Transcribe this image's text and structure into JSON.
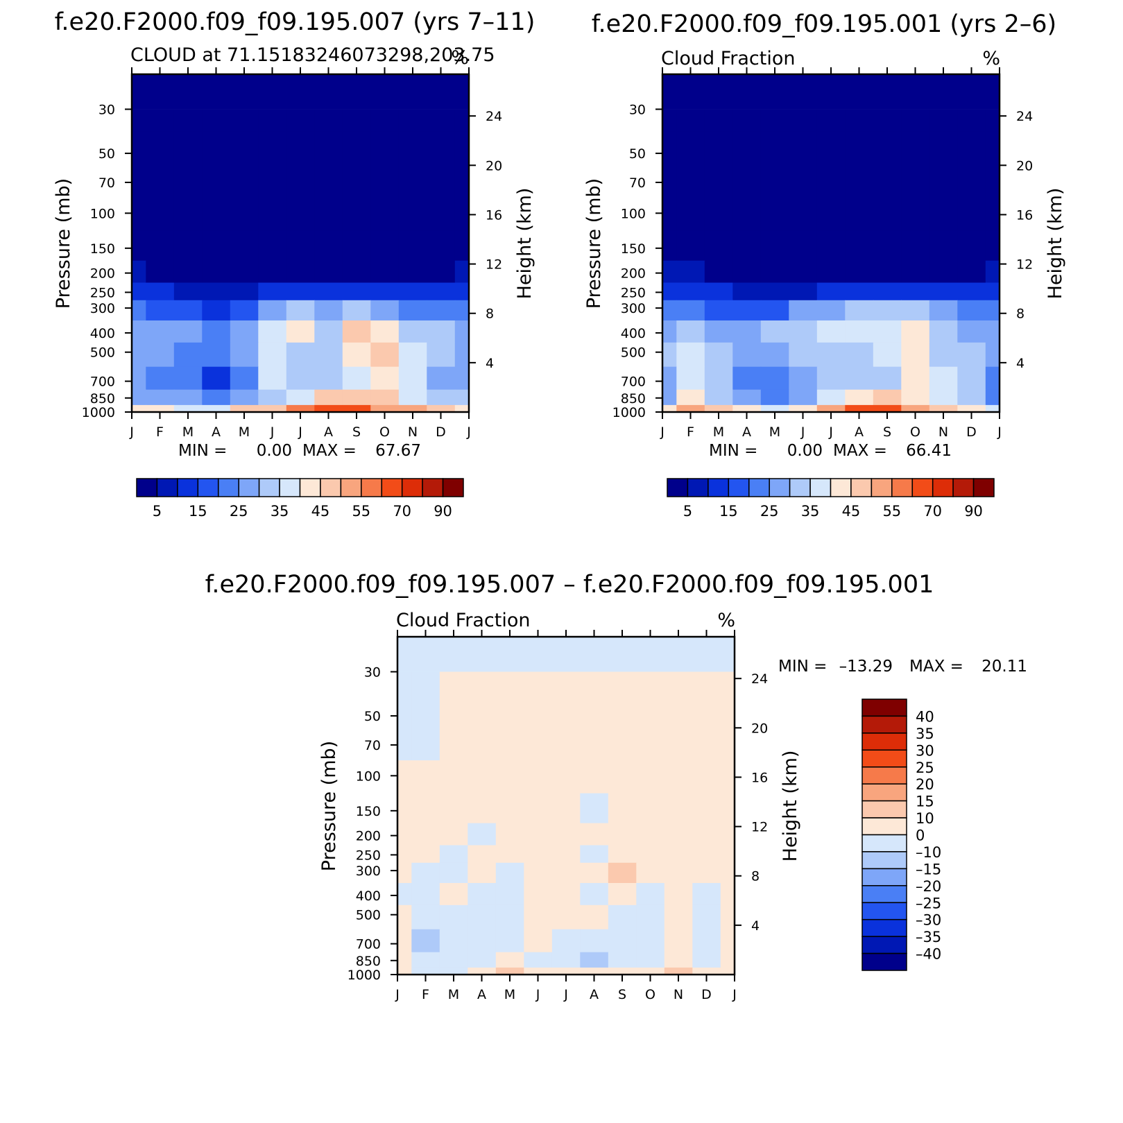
{
  "chart_data": [
    {
      "type": "heatmap",
      "case_title": "f.e20.F2000.f09_f09.195.007 (yrs 7–11)",
      "left_title": "CLOUD at 71.15183246073298,203.75",
      "right_title": "%",
      "ylabel": "Pressure (mb)",
      "y2label": "Height (km)",
      "x_ticks": [
        "J",
        "F",
        "M",
        "A",
        "M",
        "J",
        "J",
        "A",
        "S",
        "O",
        "N",
        "D",
        "J"
      ],
      "y_ticks": [
        30,
        50,
        70,
        100,
        150,
        200,
        250,
        300,
        400,
        500,
        700,
        850,
        1000
      ],
      "y2_ticks": [
        24,
        20,
        16,
        12,
        8,
        4
      ],
      "y_scale": "log",
      "ylim": [
        20,
        1000
      ],
      "min_label": "MIN =",
      "min_value": "0.00",
      "max_label": "MAX =",
      "max_value": "67.67",
      "colorbar": {
        "orientation": "horizontal",
        "labels": [
          "5",
          "15",
          "25",
          "35",
          "45",
          "55",
          "70",
          "90"
        ],
        "colors": [
          "#00008b",
          "#0018b4",
          "#0a32dc",
          "#2355f0",
          "#4a7ff5",
          "#7ea6f8",
          "#aecaf9",
          "#d6e7fb",
          "#fde8d7",
          "#fbc9ae",
          "#f8a57e",
          "#f67a4a",
          "#f24c18",
          "#dd2d08",
          "#b41a08",
          "#7f0000"
        ]
      },
      "field": [
        [
          0,
          0,
          0,
          0,
          0,
          0,
          0,
          0,
          0,
          0,
          0,
          0,
          0
        ],
        [
          0,
          0,
          0,
          0,
          0,
          0,
          0,
          0,
          0,
          0,
          0,
          0,
          0
        ],
        [
          0,
          0,
          0,
          0,
          0,
          0,
          0,
          0,
          0,
          0,
          0,
          0,
          0
        ],
        [
          0,
          0,
          0,
          0,
          0,
          0,
          0,
          0,
          0,
          0,
          0,
          0,
          0
        ],
        [
          1,
          1,
          1,
          1,
          1,
          1,
          1,
          1,
          1,
          1,
          1,
          1,
          1
        ],
        [
          6,
          4,
          3,
          2,
          2,
          3,
          4,
          4,
          4,
          4,
          4,
          4,
          6
        ],
        [
          12,
          11,
          9,
          6,
          7,
          10,
          11,
          12,
          12,
          11,
          11,
          11,
          12
        ],
        [
          20,
          19,
          17,
          14,
          19,
          27,
          30,
          28,
          33,
          27,
          23,
          21,
          22
        ],
        [
          25,
          27,
          25,
          22,
          29,
          38,
          42,
          31,
          45,
          43,
          34,
          30,
          27
        ],
        [
          28,
          28,
          24,
          20,
          27,
          35,
          32,
          30,
          44,
          46,
          38,
          31,
          28
        ],
        [
          25,
          24,
          22,
          14,
          20,
          35,
          32,
          33,
          36,
          40,
          36,
          28,
          26
        ],
        [
          28,
          26,
          27,
          23,
          28,
          33,
          38,
          45,
          47,
          45,
          38,
          33,
          30
        ],
        [
          40,
          40,
          38,
          37,
          45,
          47,
          55,
          60,
          62,
          54,
          50,
          46,
          40
        ]
      ]
    },
    {
      "type": "heatmap",
      "case_title": "f.e20.F2000.f09_f09.195.001 (yrs 2–6)",
      "left_title": "Cloud Fraction",
      "right_title": "%",
      "ylabel": "Pressure (mb)",
      "y2label": "Height (km)",
      "x_ticks": [
        "J",
        "F",
        "M",
        "A",
        "M",
        "J",
        "J",
        "A",
        "S",
        "O",
        "N",
        "D",
        "J"
      ],
      "y_ticks": [
        30,
        50,
        70,
        100,
        150,
        200,
        250,
        300,
        400,
        500,
        700,
        850,
        1000
      ],
      "y2_ticks": [
        24,
        20,
        16,
        12,
        8,
        4
      ],
      "y_scale": "log",
      "ylim": [
        20,
        1000
      ],
      "min_label": "MIN =",
      "min_value": "0.00",
      "max_label": "MAX =",
      "max_value": "66.41",
      "colorbar": {
        "orientation": "horizontal",
        "labels": [
          "5",
          "15",
          "25",
          "35",
          "45",
          "55",
          "70",
          "90"
        ],
        "colors": [
          "#00008b",
          "#0018b4",
          "#0a32dc",
          "#2355f0",
          "#4a7ff5",
          "#7ea6f8",
          "#aecaf9",
          "#d6e7fb",
          "#fde8d7",
          "#fbc9ae",
          "#f8a57e",
          "#f67a4a",
          "#f24c18",
          "#dd2d08",
          "#b41a08",
          "#7f0000"
        ]
      },
      "field": [
        [
          0,
          0,
          0,
          0,
          0,
          0,
          0,
          0,
          0,
          0,
          0,
          0,
          0
        ],
        [
          0,
          0,
          0,
          0,
          0,
          0,
          0,
          0,
          0,
          0,
          0,
          0,
          0
        ],
        [
          0,
          0,
          0,
          0,
          0,
          0,
          0,
          0,
          0,
          0,
          0,
          0,
          0
        ],
        [
          0,
          0,
          0,
          0,
          0,
          0,
          0,
          0,
          0,
          0,
          0,
          0,
          0
        ],
        [
          1,
          1,
          1,
          1,
          1,
          1,
          1,
          1,
          1,
          1,
          1,
          1,
          1
        ],
        [
          6,
          5,
          3,
          2,
          2,
          3,
          4,
          4,
          4,
          4,
          4,
          4,
          6
        ],
        [
          12,
          12,
          10,
          8,
          7,
          9,
          11,
          11,
          12,
          12,
          12,
          11,
          12
        ],
        [
          20,
          21,
          18,
          16,
          18,
          26,
          29,
          30,
          32,
          30,
          25,
          22,
          20
        ],
        [
          28,
          30,
          29,
          28,
          30,
          34,
          36,
          37,
          38,
          40,
          33,
          29,
          27
        ],
        [
          30,
          35,
          30,
          27,
          26,
          30,
          33,
          33,
          37,
          42,
          34,
          30,
          26
        ],
        [
          28,
          38,
          30,
          24,
          20,
          28,
          33,
          33,
          34,
          40,
          35,
          30,
          24
        ],
        [
          26,
          40,
          32,
          26,
          23,
          28,
          36,
          44,
          48,
          44,
          36,
          30,
          22
        ],
        [
          40,
          50,
          48,
          40,
          38,
          42,
          52,
          60,
          60,
          50,
          45,
          40,
          35
        ]
      ]
    },
    {
      "type": "heatmap",
      "case_title": "f.e20.F2000.f09_f09.195.007 – f.e20.F2000.f09_f09.195.001",
      "left_title": "Cloud Fraction",
      "right_title": "%",
      "ylabel": "Pressure (mb)",
      "y2label": "Height (km)",
      "x_ticks": [
        "J",
        "F",
        "M",
        "A",
        "M",
        "J",
        "J",
        "A",
        "S",
        "O",
        "N",
        "D",
        "J"
      ],
      "y_ticks": [
        30,
        50,
        70,
        100,
        150,
        200,
        250,
        300,
        400,
        500,
        700,
        850,
        1000
      ],
      "y2_ticks": [
        24,
        20,
        16,
        12,
        8,
        4
      ],
      "y_scale": "log",
      "ylim": [
        20,
        1000
      ],
      "min_label": "MIN =",
      "min_value": "–13.29",
      "max_label": "MAX =",
      "max_value": "20.11",
      "colorbar": {
        "orientation": "vertical",
        "labels": [
          "40",
          "35",
          "30",
          "25",
          "20",
          "15",
          "10",
          "0",
          "–10",
          "–15",
          "–20",
          "–25",
          "–30",
          "–35",
          "–40"
        ],
        "colors": [
          "#7f0000",
          "#b41a08",
          "#dd2d08",
          "#f24c18",
          "#f67a4a",
          "#f8a57e",
          "#fbc9ae",
          "#fde8d7",
          "#d6e7fb",
          "#aecaf9",
          "#7ea6f8",
          "#4a7ff5",
          "#2355f0",
          "#0a32dc",
          "#0018b4",
          "#00008b"
        ]
      },
      "field": [
        [
          -2,
          -2,
          1,
          1,
          1,
          1,
          1,
          1,
          1,
          1,
          1,
          1,
          1
        ],
        [
          -2,
          -2,
          1,
          1,
          1,
          1,
          1,
          1,
          1,
          1,
          1,
          1,
          1
        ],
        [
          -2,
          -2,
          1,
          1,
          1,
          1,
          1,
          1,
          1,
          1,
          1,
          1,
          1
        ],
        [
          1,
          1,
          1,
          1,
          1,
          1,
          1,
          1,
          1,
          1,
          1,
          1,
          1
        ],
        [
          1,
          1,
          1,
          1,
          1,
          1,
          1,
          -2,
          1,
          1,
          1,
          1,
          1
        ],
        [
          1,
          1,
          1,
          -2,
          1,
          1,
          1,
          1,
          1,
          1,
          1,
          1,
          1
        ],
        [
          1,
          1,
          -2,
          1,
          1,
          1,
          1,
          -2,
          1,
          1,
          1,
          1,
          1
        ],
        [
          1,
          -3,
          -2,
          1,
          -3,
          1,
          1,
          1,
          12,
          1,
          1,
          1,
          1
        ],
        [
          -3,
          -3,
          1,
          -3,
          -3,
          1,
          1,
          -3,
          1,
          -3,
          1,
          -3,
          1
        ],
        [
          1,
          -3,
          -3,
          -3,
          -3,
          1,
          1,
          1,
          -3,
          -3,
          1,
          -3,
          1
        ],
        [
          1,
          -11,
          -3,
          -3,
          -3,
          1,
          -3,
          -3,
          -3,
          -3,
          1,
          -3,
          1
        ],
        [
          1,
          -3,
          -3,
          -3,
          1,
          -3,
          -3,
          -11,
          -3,
          -3,
          1,
          -3,
          1
        ],
        [
          1,
          -3,
          -3,
          1,
          12,
          1,
          1,
          1,
          1,
          1,
          12,
          1,
          1
        ]
      ]
    }
  ]
}
